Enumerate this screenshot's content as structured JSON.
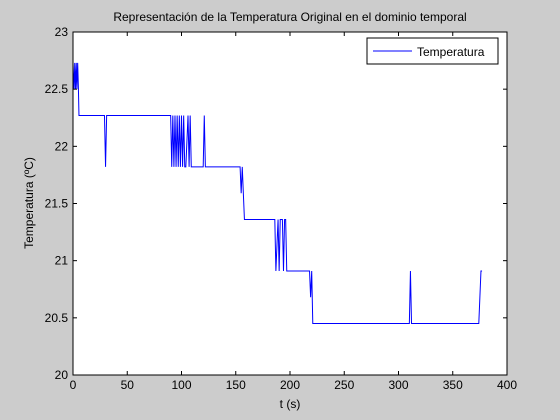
{
  "chart_data": {
    "type": "line",
    "title": "Representación de la Temperatura Original en el dominio temporal",
    "xlabel": "t (s)",
    "ylabel": "Temperatura (ºC)",
    "xlim": [
      0,
      400
    ],
    "ylim": [
      20,
      23
    ],
    "x_ticks": [
      0,
      50,
      100,
      150,
      200,
      250,
      300,
      350,
      400
    ],
    "y_ticks": [
      20,
      20.5,
      21,
      21.5,
      22,
      22.5,
      23
    ],
    "x_tick_labels": [
      "0",
      "50",
      "100",
      "150",
      "200",
      "250",
      "300",
      "350",
      "400"
    ],
    "y_tick_labels": [
      "20",
      "20.5",
      "21",
      "21.5",
      "22",
      "22.5",
      "23"
    ],
    "grid": false,
    "legend_position": "top-right",
    "colors": {
      "figure_bg": "#cccccc",
      "axes_bg": "#ffffff",
      "series": "#0000ff"
    },
    "series": [
      {
        "name": "Temperatura",
        "color": "#0000ff",
        "points": [
          [
            0,
            22.73
          ],
          [
            1,
            22.5
          ],
          [
            1.6,
            22.73
          ],
          [
            2.3,
            22.5
          ],
          [
            3,
            22.73
          ],
          [
            3.6,
            22.5
          ],
          [
            4.3,
            22.73
          ],
          [
            5,
            22.5
          ],
          [
            5.5,
            22.27
          ],
          [
            29,
            22.27
          ],
          [
            30,
            21.82
          ],
          [
            31,
            22.27
          ],
          [
            32,
            22.27
          ],
          [
            90,
            22.27
          ],
          [
            91,
            21.82
          ],
          [
            92,
            22.27
          ],
          [
            93,
            21.82
          ],
          [
            94,
            22.27
          ],
          [
            95,
            21.82
          ],
          [
            96,
            22.27
          ],
          [
            97,
            21.82
          ],
          [
            98,
            22.27
          ],
          [
            99,
            21.82
          ],
          [
            100,
            22.27
          ],
          [
            101,
            21.82
          ],
          [
            102,
            22.27
          ],
          [
            103,
            21.82
          ],
          [
            104,
            21.82
          ],
          [
            106,
            22.27
          ],
          [
            107,
            21.82
          ],
          [
            108,
            22.27
          ],
          [
            109,
            21.82
          ],
          [
            110,
            21.82
          ],
          [
            120,
            21.82
          ],
          [
            121,
            22.27
          ],
          [
            122,
            21.82
          ],
          [
            154,
            21.82
          ],
          [
            155,
            21.59
          ],
          [
            156,
            21.82
          ],
          [
            157,
            21.59
          ],
          [
            158,
            21.36
          ],
          [
            186,
            21.36
          ],
          [
            187,
            20.91
          ],
          [
            188,
            21.14
          ],
          [
            189,
            21.36
          ],
          [
            190,
            20.91
          ],
          [
            191,
            21.36
          ],
          [
            193,
            21.36
          ],
          [
            194,
            20.91
          ],
          [
            195,
            21.36
          ],
          [
            196,
            21.36
          ],
          [
            197,
            20.91
          ],
          [
            218,
            20.91
          ],
          [
            219,
            20.68
          ],
          [
            220,
            20.91
          ],
          [
            221,
            20.45
          ],
          [
            310,
            20.45
          ],
          [
            311,
            20.91
          ],
          [
            312,
            20.45
          ],
          [
            374,
            20.45
          ],
          [
            375,
            20.68
          ],
          [
            376,
            20.91
          ],
          [
            377,
            20.91
          ]
        ]
      }
    ]
  }
}
